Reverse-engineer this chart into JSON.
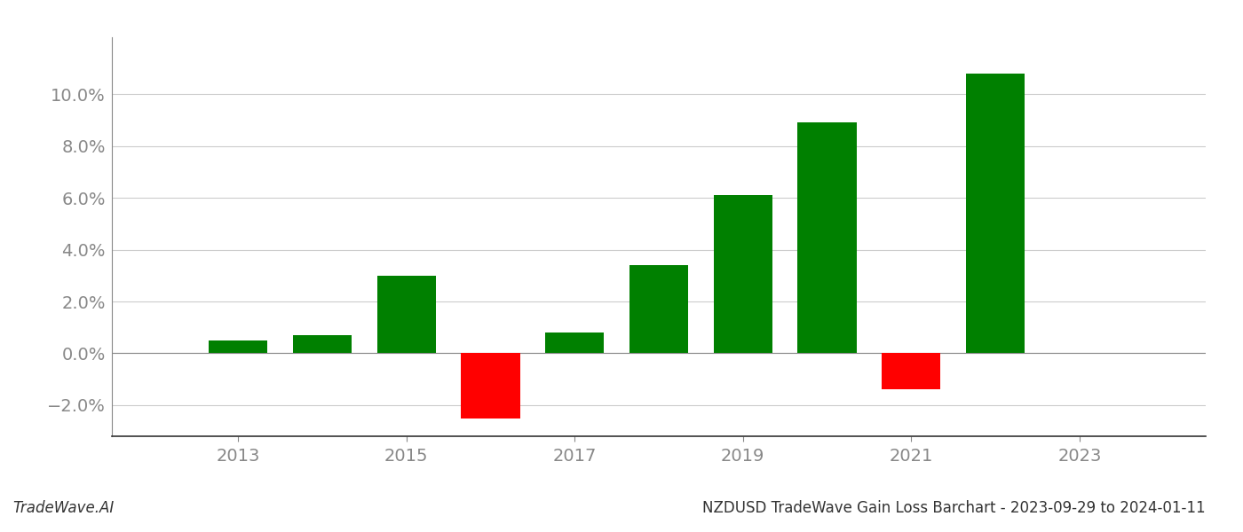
{
  "years": [
    2013,
    2014,
    2015,
    2016,
    2017,
    2018,
    2019,
    2020,
    2021,
    2022
  ],
  "values": [
    0.005,
    0.007,
    0.03,
    -0.025,
    0.008,
    0.034,
    0.061,
    0.089,
    -0.014,
    0.108
  ],
  "colors_positive": "#008000",
  "colors_negative": "#ff0000",
  "title": "NZDUSD TradeWave Gain Loss Barchart - 2023-09-29 to 2024-01-11",
  "watermark": "TradeWave.AI",
  "ylim_min": -0.032,
  "ylim_max": 0.122,
  "yticks": [
    -0.02,
    0.0,
    0.02,
    0.04,
    0.06,
    0.08,
    0.1
  ],
  "xlim_min": 2011.5,
  "xlim_max": 2024.5,
  "xtick_labels": [
    2013,
    2015,
    2017,
    2019,
    2021,
    2023
  ],
  "background_color": "#ffffff",
  "grid_color": "#cccccc",
  "title_fontsize": 12,
  "watermark_fontsize": 12,
  "axis_label_fontsize": 14,
  "bar_width": 0.7
}
